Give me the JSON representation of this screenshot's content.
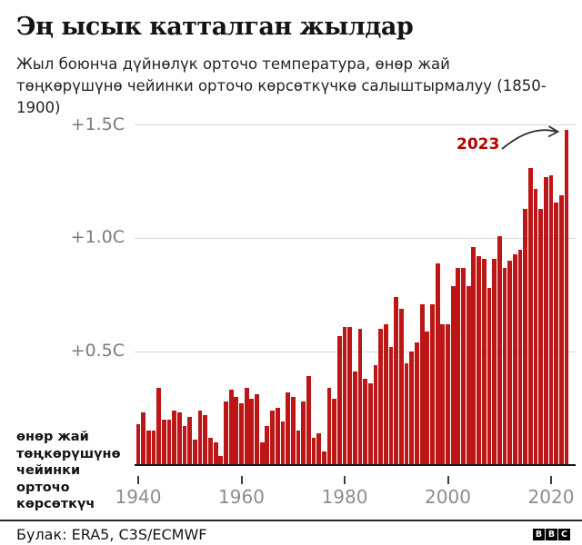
{
  "chart_data": {
    "type": "bar",
    "title": "Эң ысык катталган жылдар",
    "subtitle_lines": [
      "Жыл боюнча дүйнөлүк орточо температура, өнөр жай",
      "төңкөрүшүнө чейинки орточо көрсөткүчкө салыштырмалуу (1850-1900)"
    ],
    "x_start": 1940,
    "x_end": 2023,
    "values": [
      0.18,
      0.23,
      0.15,
      0.15,
      0.34,
      0.2,
      0.2,
      0.24,
      0.23,
      0.17,
      0.21,
      0.11,
      0.24,
      0.22,
      0.12,
      0.1,
      0.04,
      0.28,
      0.33,
      0.3,
      0.27,
      0.34,
      0.29,
      0.31,
      0.1,
      0.17,
      0.24,
      0.25,
      0.19,
      0.32,
      0.3,
      0.15,
      0.28,
      0.39,
      0.12,
      0.14,
      0.06,
      0.34,
      0.29,
      0.57,
      0.61,
      0.61,
      0.41,
      0.6,
      0.38,
      0.36,
      0.44,
      0.6,
      0.62,
      0.52,
      0.74,
      0.69,
      0.45,
      0.5,
      0.54,
      0.71,
      0.59,
      0.71,
      0.89,
      0.62,
      0.62,
      0.79,
      0.87,
      0.87,
      0.79,
      0.96,
      0.92,
      0.91,
      0.78,
      0.91,
      1.01,
      0.87,
      0.9,
      0.93,
      0.95,
      1.13,
      1.31,
      1.22,
      1.13,
      1.27,
      1.28,
      1.16,
      1.19,
      1.48
    ],
    "ylim": [
      0,
      1.55
    ],
    "gridlines": [
      {
        "value": 1.5,
        "label": "+1.5C"
      },
      {
        "value": 1.0,
        "label": "+1.0C"
      },
      {
        "value": 0.5,
        "label": "+0.5C"
      }
    ],
    "xticks": [
      1940,
      1960,
      1980,
      2000,
      2020
    ],
    "axis_note": "өнөр жай\nтөңкөрүшүнө\nчейинки орточо\nкөрсөткүч",
    "annotation": {
      "label": "2023",
      "target_year": 2023
    },
    "bar_color": "#bc1616",
    "annotation_color": "#b50000",
    "legend": "none",
    "grid": "horizontal"
  },
  "footer": {
    "source": "Булак: ERA5, C3S/ECMWF",
    "logo_letters": [
      "B",
      "B",
      "C"
    ]
  }
}
